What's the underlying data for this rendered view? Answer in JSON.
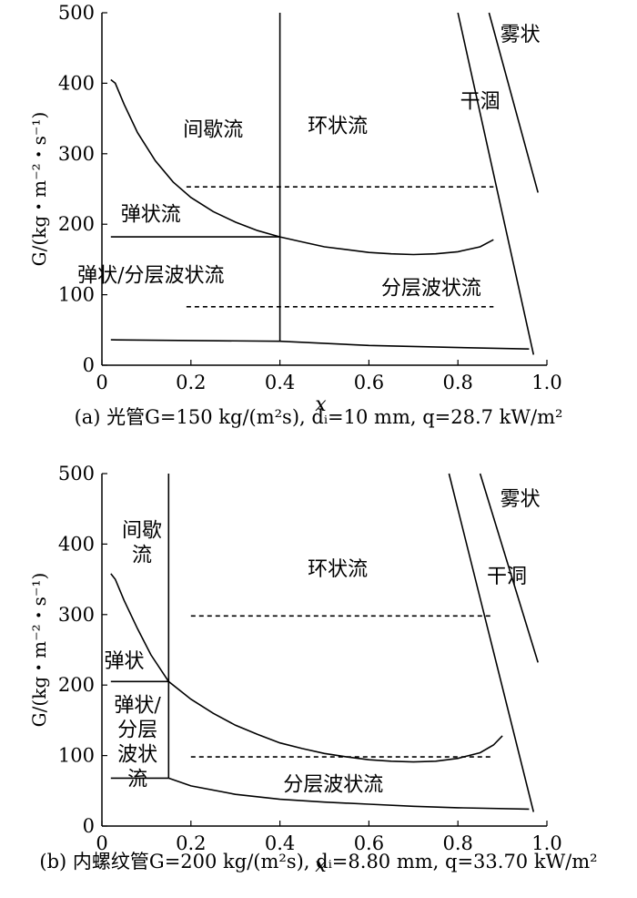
{
  "chart_data": [
    {
      "type": "line",
      "caption": "(a) 光管G=150 kg/(m²s), dᵢ=10 mm, q=28.7 kW/m²",
      "xlabel": "x",
      "ylabel": "G/(kg・m⁻²・s⁻¹)",
      "xlim": [
        0,
        1.0
      ],
      "ylim": [
        0,
        500
      ],
      "xticks": [
        "0",
        "0.2",
        "0.4",
        "0.6",
        "0.8",
        "1.0"
      ],
      "yticks": [
        "0",
        "100",
        "200",
        "300",
        "400",
        "500"
      ],
      "region_labels": [
        "间歇流",
        "环状流",
        "干涸",
        "雾状",
        "弹状流",
        "弹状/分层波状流",
        "分层波状流"
      ],
      "series": [
        {
          "style": "solid",
          "points": [
            [
              0.02,
              405
            ],
            [
              0.03,
              400
            ],
            [
              0.05,
              370
            ],
            [
              0.08,
              330
            ],
            [
              0.12,
              290
            ],
            [
              0.16,
              260
            ],
            [
              0.2,
              238
            ],
            [
              0.25,
              218
            ],
            [
              0.3,
              203
            ],
            [
              0.35,
              191
            ],
            [
              0.4,
              182
            ],
            [
              0.45,
              175
            ],
            [
              0.5,
              168
            ],
            [
              0.55,
              164
            ],
            [
              0.6,
              160
            ],
            [
              0.65,
              158
            ],
            [
              0.7,
              157
            ],
            [
              0.75,
              158
            ],
            [
              0.8,
              161
            ],
            [
              0.85,
              168
            ],
            [
              0.88,
              178
            ]
          ]
        },
        {
          "style": "solid",
          "points": [
            [
              0.02,
              36
            ],
            [
              0.2,
              35
            ],
            [
              0.4,
              34
            ],
            [
              0.6,
              28
            ],
            [
              0.8,
              25
            ],
            [
              0.96,
              23
            ]
          ]
        },
        {
          "style": "solid",
          "points": [
            [
              0.4,
              34
            ],
            [
              0.4,
              500
            ]
          ]
        },
        {
          "style": "solid",
          "points": [
            [
              0.02,
              182
            ],
            [
              0.4,
              182
            ]
          ]
        },
        {
          "style": "solid",
          "points": [
            [
              0.8,
              500
            ],
            [
              0.97,
              15
            ]
          ]
        },
        {
          "style": "solid",
          "points": [
            [
              0.87,
              500
            ],
            [
              0.98,
              245
            ]
          ]
        },
        {
          "style": "dashed",
          "points": [
            [
              0.19,
              253
            ],
            [
              0.88,
              253
            ]
          ]
        },
        {
          "style": "dashed",
          "points": [
            [
              0.19,
              83
            ],
            [
              0.88,
              83
            ]
          ]
        }
      ]
    },
    {
      "type": "line",
      "caption": "(b) 内螺纹管G=200 kg/(m²s), dᵢ=8.80 mm, q=33.70 kW/m²",
      "xlabel": "x",
      "ylabel": "G/(kg・m⁻²・s⁻¹)",
      "xlim": [
        0,
        1.0
      ],
      "ylim": [
        0,
        500
      ],
      "xticks": [
        "0",
        "0.2",
        "0.4",
        "0.6",
        "0.8",
        "1.0"
      ],
      "yticks": [
        "0",
        "100",
        "200",
        "300",
        "400",
        "500"
      ],
      "region_labels": [
        "间歇流",
        "环状流",
        "干洞",
        "雾状",
        "弹状",
        "弹状/分层波状流",
        "分层波状流"
      ],
      "series": [
        {
          "style": "solid",
          "points": [
            [
              0.02,
              358
            ],
            [
              0.03,
              350
            ],
            [
              0.05,
              320
            ],
            [
              0.08,
              280
            ],
            [
              0.11,
              243
            ],
            [
              0.15,
              205
            ],
            [
              0.2,
              180
            ],
            [
              0.25,
              160
            ],
            [
              0.3,
              143
            ],
            [
              0.35,
              130
            ],
            [
              0.4,
              118
            ],
            [
              0.45,
              110
            ],
            [
              0.5,
              103
            ],
            [
              0.55,
              98
            ],
            [
              0.6,
              94
            ],
            [
              0.65,
              92
            ],
            [
              0.7,
              91
            ],
            [
              0.75,
              92
            ],
            [
              0.8,
              96
            ],
            [
              0.85,
              104
            ],
            [
              0.88,
              115
            ],
            [
              0.9,
              128
            ]
          ]
        },
        {
          "style": "solid",
          "points": [
            [
              0.15,
              68
            ],
            [
              0.2,
              57
            ],
            [
              0.3,
              45
            ],
            [
              0.4,
              38
            ],
            [
              0.5,
              34
            ],
            [
              0.6,
              31
            ],
            [
              0.7,
              28
            ],
            [
              0.8,
              26
            ],
            [
              0.96,
              24
            ]
          ]
        },
        {
          "style": "solid",
          "points": [
            [
              0.15,
              68
            ],
            [
              0.15,
              500
            ]
          ]
        },
        {
          "style": "solid",
          "points": [
            [
              0.02,
              68
            ],
            [
              0.15,
              68
            ]
          ]
        },
        {
          "style": "solid",
          "points": [
            [
              0.02,
              205
            ],
            [
              0.15,
              205
            ]
          ]
        },
        {
          "style": "solid",
          "points": [
            [
              0.78,
              500
            ],
            [
              0.97,
              20
            ]
          ]
        },
        {
          "style": "solid",
          "points": [
            [
              0.85,
              500
            ],
            [
              0.98,
              232
            ]
          ]
        },
        {
          "style": "dashed",
          "points": [
            [
              0.2,
              298
            ],
            [
              0.88,
              298
            ]
          ]
        },
        {
          "style": "dashed",
          "points": [
            [
              0.2,
              98
            ],
            [
              0.88,
              98
            ]
          ]
        }
      ]
    }
  ]
}
